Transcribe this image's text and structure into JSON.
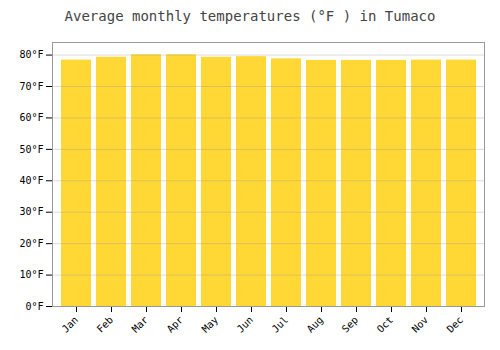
{
  "chart_data": {
    "type": "bar",
    "title": "Average monthly temperatures (°F ) in Tumaco",
    "categories": [
      "Jan",
      "Feb",
      "Mar",
      "Apr",
      "May",
      "Jun",
      "Jul",
      "Aug",
      "Sep",
      "Oct",
      "Nov",
      "Dec"
    ],
    "values": [
      78.4,
      79.3,
      80.1,
      80.1,
      79.3,
      79.5,
      78.8,
      78.3,
      78.3,
      78.3,
      78.4,
      78.4
    ],
    "color": "#FFD835",
    "ylim": [
      0,
      84
    ],
    "yticks": [
      {
        "value": 0,
        "label": "0°F"
      },
      {
        "value": 10,
        "label": "10°F"
      },
      {
        "value": 20,
        "label": "20°F"
      },
      {
        "value": 30,
        "label": "30°F"
      },
      {
        "value": 40,
        "label": "40°F"
      },
      {
        "value": 50,
        "label": "50°F"
      },
      {
        "value": 60,
        "label": "60°F"
      },
      {
        "value": 70,
        "label": "70°F"
      },
      {
        "value": 80,
        "label": "80°F"
      }
    ],
    "grid": true
  }
}
